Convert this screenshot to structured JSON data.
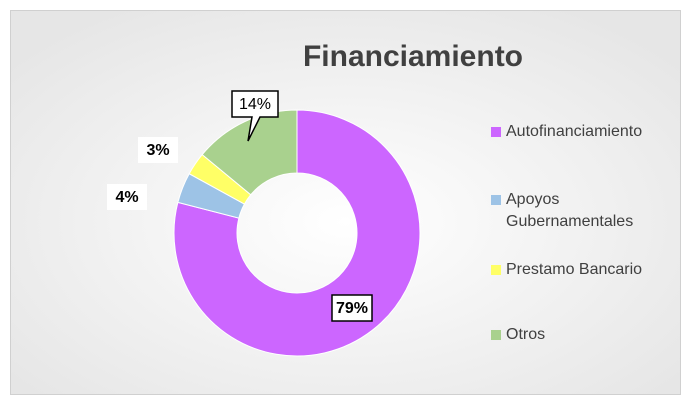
{
  "chart_data": {
    "type": "donut",
    "title": "Financiamiento",
    "categories": [
      "Autofinanciamiento",
      "Apoyos Gubernamentales",
      "Prestamo Bancario",
      "Otros"
    ],
    "values": [
      79,
      4,
      3,
      14
    ],
    "value_labels": [
      "79%",
      "4%",
      "3%",
      "14%"
    ],
    "colors": [
      "#cc66ff",
      "#9dc3e6",
      "#ffff66",
      "#a9d18e"
    ],
    "legend": "right"
  }
}
